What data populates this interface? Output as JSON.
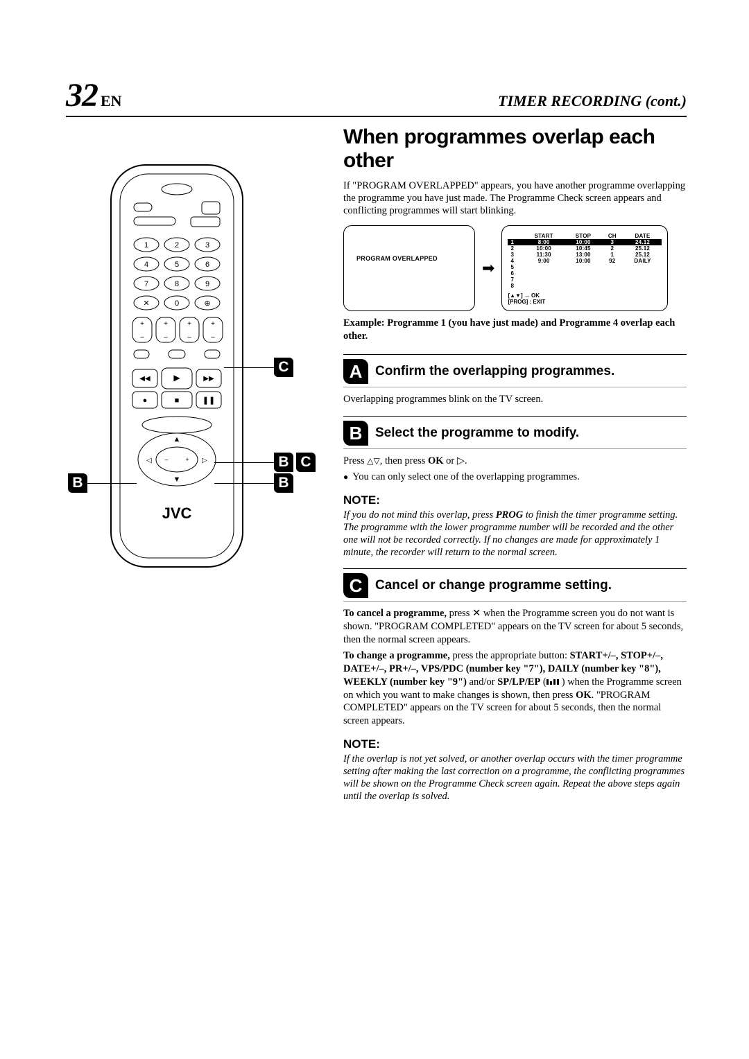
{
  "page": {
    "number": "32",
    "lang": "EN",
    "headerTitle": "TIMER RECORDING (cont.)"
  },
  "title": "When programmes overlap each other",
  "intro": "If \"PROGRAM OVERLAPPED\" appears, you have another programme overlapping the programme you have just made. The Programme Check screen appears and conflicting programmes will start blinking.",
  "tvLeftLabel": "PROGRAM OVERLAPPED",
  "progTable": {
    "headers": [
      "",
      "START",
      "STOP",
      "CH",
      "DATE"
    ],
    "rows": [
      {
        "idx": "1",
        "start": "8:00",
        "stop": "10:00",
        "ch": "3",
        "date": "24.12",
        "hl": true
      },
      {
        "idx": "2",
        "start": "10:00",
        "stop": "10:45",
        "ch": "2",
        "date": "25.12",
        "hl": false
      },
      {
        "idx": "3",
        "start": "11:30",
        "stop": "13:00",
        "ch": "1",
        "date": "25.12",
        "hl": false
      },
      {
        "idx": "4",
        "start": "9:00",
        "stop": "10:00",
        "ch": "92",
        "date": "DAILY",
        "hl": false
      },
      {
        "idx": "5",
        "start": "",
        "stop": "",
        "ch": "",
        "date": "",
        "hl": false
      },
      {
        "idx": "6",
        "start": "",
        "stop": "",
        "ch": "",
        "date": "",
        "hl": false
      },
      {
        "idx": "7",
        "start": "",
        "stop": "",
        "ch": "",
        "date": "",
        "hl": false
      },
      {
        "idx": "8",
        "start": "",
        "stop": "",
        "ch": "",
        "date": "",
        "hl": false
      }
    ],
    "footer1": "[▲▼] → OK",
    "footer2": "[PROG] : EXIT"
  },
  "example": "Example: Programme 1 (you have just made) and Programme 4 overlap each other.",
  "steps": {
    "s1": {
      "num": "A",
      "title": "Confirm the overlapping programmes.",
      "body": "Overlapping programmes blink on the TV screen."
    },
    "s2": {
      "num": "B",
      "title": "Select the programme to modify.",
      "pressPrefix": "Press ",
      "pressOk": "OK",
      "pressMid": ", then press ",
      "pressSuffix": " or ▷.",
      "bullet": "You can only select one of the overlapping programmes."
    },
    "s3": {
      "num": "C",
      "title": "Cancel or change programme setting."
    }
  },
  "note1": {
    "title": "NOTE:",
    "body": "If you do not mind this overlap, press PROG to finish the timer programme setting. The programme with the lower programme number will be recorded and the other one will not be recorded correctly. If no changes are made for approximately 1 minute, the recorder will return to the normal screen."
  },
  "s3body": {
    "cancelLabel": "To cancel a programme,",
    "cancelText": " press ✕ when the Programme screen you do not want is shown. \"PROGRAM COMPLETED\" appears on the TV screen for about 5 seconds, then the normal screen appears.",
    "changeLabel": "To change a programme,",
    "changeText1": " press the appropriate button: ",
    "btns1": "START+/–, STOP+/–, DATE+/–, PR+/–, VPS/PDC",
    "btns2": "(number key \"7\")",
    "btns3": ", DAILY (number key \"8\"), WEEKLY (number key \"9\")",
    "btns4": " and/or ",
    "btns5": "SP/LP/EP",
    "changeText2": " when the Programme screen on which you want to make changes is shown, then press ",
    "ok": "OK",
    "changeText3": ". \"PROGRAM COMPLETED\" appears on the TV screen for about 5 seconds, then the normal screen appears."
  },
  "note2": {
    "title": "NOTE:",
    "body": "If the overlap is not yet solved, or another overlap occurs with the timer programme setting after making the last correction on a programme, the conflicting programmes will be shown on the Programme Check screen again. Repeat the above steps again until the overlap is solved."
  },
  "callouts": {
    "c1": "B",
    "c2": "C",
    "c3": "B",
    "c4": "C",
    "c5": "B"
  },
  "remote": {
    "brand": "JVC"
  }
}
